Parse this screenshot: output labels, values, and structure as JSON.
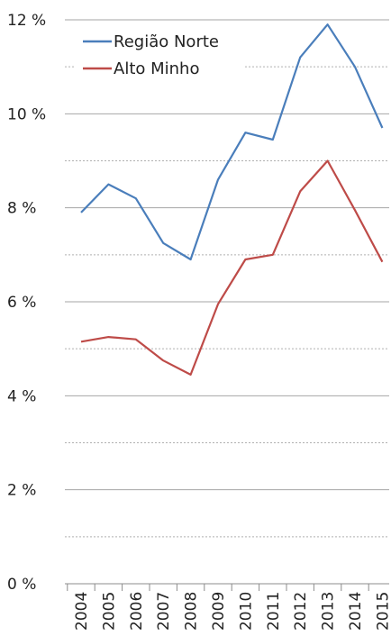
{
  "chart_data": {
    "type": "line",
    "title": "",
    "xlabel": "",
    "ylabel": "",
    "categories": [
      "2004",
      "2005",
      "2006",
      "2007",
      "2008",
      "2009",
      "2010",
      "2011",
      "2012",
      "2013",
      "2014",
      "2015"
    ],
    "series": [
      {
        "name": "Região Norte",
        "color": "#4a7ebb",
        "values": [
          7.9,
          8.5,
          8.2,
          7.25,
          6.9,
          8.6,
          9.6,
          9.45,
          11.2,
          11.9,
          11.0,
          9.7
        ]
      },
      {
        "name": "Alto Minho",
        "color": "#be4b48",
        "values": [
          5.15,
          5.25,
          5.2,
          4.75,
          4.45,
          5.95,
          6.9,
          7.0,
          8.35,
          9.0,
          7.95,
          6.85
        ]
      }
    ],
    "ylim": [
      0,
      12
    ],
    "yticks": [
      0,
      2,
      4,
      6,
      8,
      10,
      12
    ],
    "ytick_labels": [
      "0 %",
      "2 %",
      "4 %",
      "6 %",
      "8 %",
      "10 %",
      "12 %"
    ],
    "grid": "horizontal solid at labeled ticks, dashed at odd values",
    "legend": "top-left"
  }
}
